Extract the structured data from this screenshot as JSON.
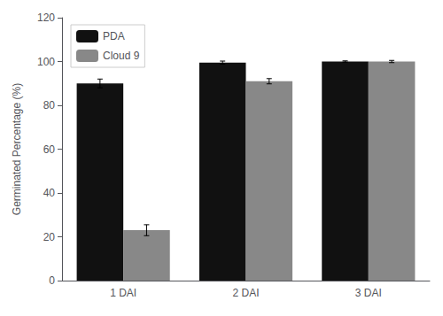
{
  "chart_data": {
    "type": "bar",
    "categories": [
      "1 DAI",
      "2 DAI",
      "3 DAI"
    ],
    "series": [
      {
        "name": "PDA",
        "color": "#111111",
        "values": [
          90,
          99.5,
          100
        ],
        "errors": [
          2.0,
          0.7,
          0.3
        ]
      },
      {
        "name": "Cloud 9",
        "color": "#888888",
        "values": [
          23,
          91,
          100
        ],
        "errors": [
          2.5,
          1.2,
          0.5
        ]
      }
    ],
    "ylabel": "Germinated Percentage (%)",
    "ylim": [
      0,
      120
    ],
    "yticks": [
      0,
      20,
      40,
      60,
      80,
      100,
      120
    ],
    "grid": false,
    "legend": "upper left"
  }
}
